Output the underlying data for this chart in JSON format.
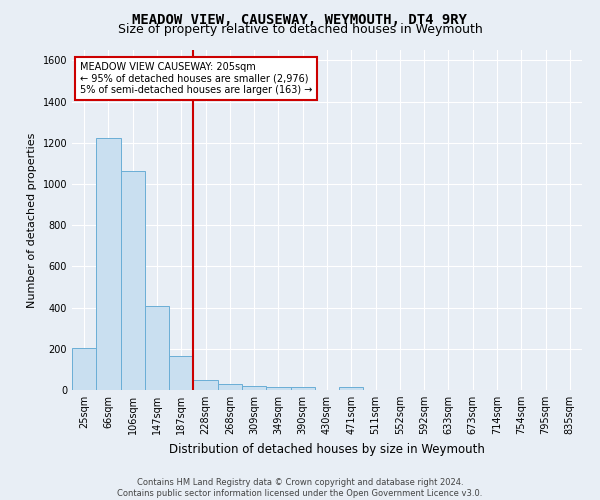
{
  "title": "MEADOW VIEW, CAUSEWAY, WEYMOUTH, DT4 9RY",
  "subtitle": "Size of property relative to detached houses in Weymouth",
  "xlabel": "Distribution of detached houses by size in Weymouth",
  "ylabel": "Number of detached properties",
  "bin_labels": [
    "25sqm",
    "66sqm",
    "106sqm",
    "147sqm",
    "187sqm",
    "228sqm",
    "268sqm",
    "309sqm",
    "349sqm",
    "390sqm",
    "430sqm",
    "471sqm",
    "511sqm",
    "552sqm",
    "592sqm",
    "633sqm",
    "673sqm",
    "714sqm",
    "754sqm",
    "795sqm",
    "835sqm"
  ],
  "bar_heights": [
    205,
    1225,
    1065,
    410,
    165,
    50,
    30,
    20,
    15,
    15,
    0,
    15,
    0,
    0,
    0,
    0,
    0,
    0,
    0,
    0,
    0
  ],
  "bar_color": "#c9dff0",
  "bar_edge_color": "#6aaed6",
  "red_line_x": 4.5,
  "annotation_line1": "MEADOW VIEW CAUSEWAY: 205sqm",
  "annotation_line2": "← 95% of detached houses are smaller (2,976)",
  "annotation_line3": "5% of semi-detached houses are larger (163) →",
  "annotation_box_color": "#ffffff",
  "annotation_box_edge": "#cc0000",
  "ylim": [
    0,
    1650
  ],
  "yticks": [
    0,
    200,
    400,
    600,
    800,
    1000,
    1200,
    1400,
    1600
  ],
  "footer1": "Contains HM Land Registry data © Crown copyright and database right 2024.",
  "footer2": "Contains public sector information licensed under the Open Government Licence v3.0.",
  "bg_color": "#e8eef5",
  "plot_bg_color": "#e8eef5",
  "grid_color": "#ffffff",
  "title_fontsize": 10,
  "subtitle_fontsize": 9,
  "ylabel_fontsize": 8,
  "xlabel_fontsize": 8.5,
  "tick_fontsize": 7,
  "annot_fontsize": 7,
  "footer_fontsize": 6
}
